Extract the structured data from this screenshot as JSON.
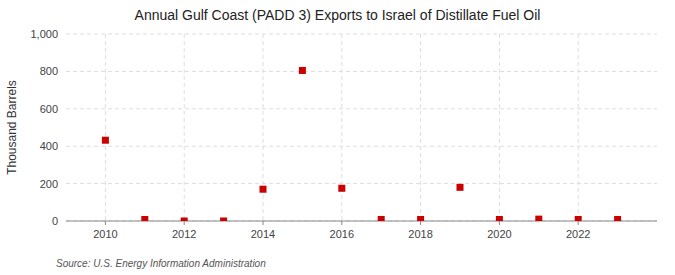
{
  "chart_data": {
    "type": "scatter",
    "title": "Annual Gulf Coast (PADD 3) Exports to Israel of Distillate Fuel Oil",
    "ylabel": "Thousand Barrels",
    "source": "Source: U.S. Energy Information Administration",
    "x": [
      2010,
      2011,
      2012,
      2013,
      2014,
      2015,
      2016,
      2017,
      2018,
      2019,
      2020,
      2021,
      2022,
      2023
    ],
    "values": [
      432,
      8,
      0,
      0,
      170,
      805,
      175,
      8,
      8,
      180,
      8,
      10,
      8,
      8
    ],
    "color": "#cc0000",
    "marker": "square",
    "xlim": [
      2009.0,
      2024.0
    ],
    "xticks": [
      2010,
      2012,
      2014,
      2016,
      2018,
      2020,
      2022
    ],
    "ylim": [
      0,
      1000
    ],
    "yticks": [
      0,
      200,
      400,
      600,
      800,
      {
        "value": 1000,
        "label": "1,000"
      }
    ],
    "grid": true
  }
}
